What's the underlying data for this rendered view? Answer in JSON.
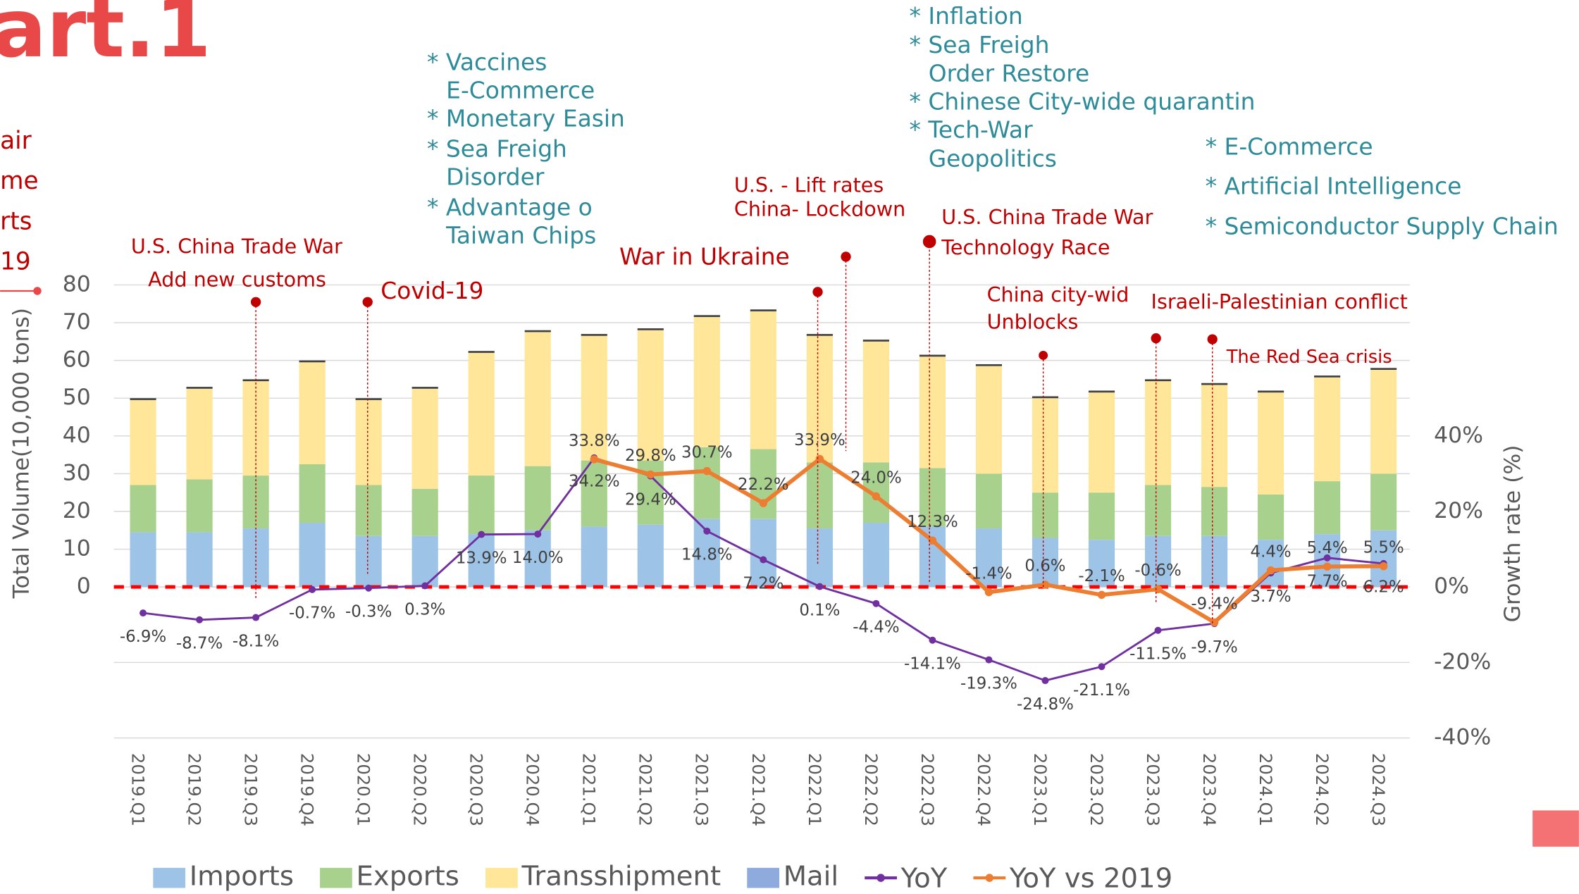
{
  "chart_data": {
    "type": "bar",
    "title": "art.1",
    "side_notes": [
      "air",
      "me",
      "rts",
      "19"
    ],
    "y_label": "Total Volume(10,000 tons)",
    "y2_label": "Growth rate (%)",
    "categories": [
      "2019.Q1",
      "2019.Q2",
      "2019.Q3",
      "2019.Q4",
      "2020.Q1",
      "2020.Q2",
      "2020.Q3",
      "2020.Q4",
      "2021.Q1",
      "2021.Q2",
      "2021.Q3",
      "2021.Q4",
      "2022.Q1",
      "2022.Q2",
      "2022.Q3",
      "2022.Q4",
      "2023.Q1",
      "2023.Q2",
      "2023.Q3",
      "2023.Q4",
      "2024.Q1",
      "2024.Q2",
      "2024.Q3"
    ],
    "series": [
      {
        "name": "Imports",
        "type": "bar",
        "color": "#9dc3e6",
        "values": [
          14.5,
          14.5,
          15.5,
          17,
          13.5,
          13.5,
          14,
          15,
          16,
          16.5,
          18,
          18,
          15.5,
          17,
          16,
          15.5,
          13,
          12.5,
          13.5,
          13.5,
          12.5,
          14,
          15
        ]
      },
      {
        "name": "Exports",
        "type": "bar",
        "color": "#a9d18e",
        "values": [
          12.5,
          14,
          14,
          15.5,
          13.5,
          12.5,
          15.5,
          17,
          17.5,
          17,
          19,
          18.5,
          17.5,
          16,
          15.5,
          14.5,
          12,
          12.5,
          13.5,
          13,
          12,
          14,
          15
        ]
      },
      {
        "name": "Transshipment",
        "type": "bar",
        "color": "#ffe699",
        "values": [
          22.5,
          24,
          25,
          27,
          22.5,
          26.5,
          32.5,
          35.5,
          33,
          34.5,
          34.5,
          36.5,
          33.5,
          32,
          29.5,
          28.5,
          25,
          26.5,
          27.5,
          27,
          27,
          27.5,
          27.5
        ]
      },
      {
        "name": "Mail",
        "type": "bar",
        "color": "#8faadc",
        "values": [
          0.5,
          0.5,
          0.5,
          0.5,
          0.5,
          0.5,
          0.5,
          0.5,
          0.5,
          0.5,
          0.5,
          0.5,
          0.5,
          0.5,
          0.5,
          0.5,
          0.5,
          0.5,
          0.5,
          0.5,
          0.5,
          0.5,
          0.5
        ]
      },
      {
        "name": "YoY",
        "type": "line",
        "axis": "y2",
        "color": "#7030a0",
        "values": [
          -6.9,
          -8.7,
          -8.1,
          -0.7,
          -0.3,
          0.3,
          13.9,
          14.0,
          34.2,
          29.4,
          14.8,
          7.2,
          0.1,
          -4.4,
          -14.1,
          -19.3,
          -24.8,
          -21.1,
          -11.5,
          -9.7,
          3.7,
          7.7,
          6.2
        ],
        "value_labels": [
          "-6.9%",
          "-8.7%",
          "-8.1%",
          "-0.7%",
          "-0.3%",
          "0.3%",
          "13.9%",
          "14.0%",
          "34.2%",
          "29.4%",
          "14.8%",
          "7.2%",
          "0.1%",
          "-4.4%",
          "-14.1%",
          "-19.3%",
          "-24.8%",
          "-21.1%",
          "-11.5%",
          "-9.7%",
          "3.7%",
          "7.7%",
          "6.2%"
        ]
      },
      {
        "name": "YoY vs 2019",
        "type": "line",
        "axis": "y2",
        "color": "#ed7d31",
        "values": [
          null,
          null,
          null,
          null,
          null,
          null,
          null,
          null,
          33.8,
          29.8,
          30.7,
          22.2,
          33.9,
          24.0,
          12.3,
          -1.4,
          0.6,
          -2.1,
          -0.6,
          -9.4,
          4.4,
          5.4,
          5.5
        ],
        "value_labels": [
          null,
          null,
          null,
          null,
          null,
          null,
          null,
          null,
          "33.8%",
          "29.8%",
          "30.7%",
          "22.2%",
          "33.9%",
          "24.0%",
          "12.3%",
          "-1.4%",
          "0.6%",
          "-2.1%",
          "-0.6%",
          "-9.4%",
          "4.4%",
          "5.4%",
          "5.5%"
        ]
      }
    ],
    "ylim": [
      -40,
      80
    ],
    "yticks": [
      0,
      10,
      20,
      30,
      40,
      50,
      60,
      70,
      80
    ],
    "y2lim": [
      -40,
      80
    ],
    "y2ticks": [
      {
        "value": -40,
        "label": "-40%"
      },
      {
        "value": -20,
        "label": "-20%"
      },
      {
        "value": 0,
        "label": "0%"
      },
      {
        "value": 20,
        "label": "20%"
      },
      {
        "value": 40,
        "label": "40%"
      }
    ],
    "grid": true,
    "legend": "bottom",
    "annotations": [
      "U.S. China Trade War",
      "Add new customs",
      "Covid-19",
      "* Vaccines",
      "E-Commerce",
      "* Monetary Easin",
      "* Sea Freigh",
      "Disorder",
      "* Advantage o",
      "Taiwan Chips",
      "War in Ukraine",
      "U.S. - Lift rates",
      "China-  Lockdown",
      "* Inflation",
      "* Sea Freigh",
      "Order Restore",
      "* Chinese City-wide quarantin",
      "* Tech-War",
      "Geopolitics",
      "U.S. China Trade War",
      "Technology Race",
      "* E-Commerce",
      "* Artificial Intelligence",
      "* Semiconductor Supply Chain",
      "China city-wid",
      "Unblocks",
      "Israeli-Palestinian conflict",
      "The Red Sea crisis"
    ]
  }
}
